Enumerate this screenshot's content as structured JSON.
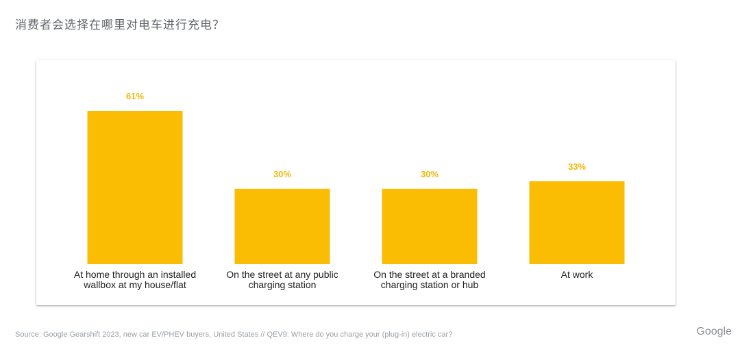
{
  "page": {
    "title": "消费者会选择在哪里对电车进行充电？",
    "source": "Source: Google Gearshift 2023, new car EV/PHEV buyers, United States // QEV9: Where do you charge your (plug-in) electric car?",
    "logo": "Google"
  },
  "colors": {
    "bar": "#FBBC04",
    "value_label": "#F2B705",
    "text": "#202124"
  },
  "chart_data": {
    "type": "bar",
    "title": "",
    "xlabel": "",
    "ylabel": "",
    "ylim": [
      0,
      70
    ],
    "grid": false,
    "legend": "none",
    "categories": [
      [
        "At home through an installed",
        "wallbox at my house/flat"
      ],
      [
        "On the street at any public",
        "charging station"
      ],
      [
        "On the street at a branded",
        "charging station or hub"
      ],
      [
        "At work"
      ]
    ],
    "values": [
      61,
      30,
      30,
      33
    ],
    "value_labels": [
      "61%",
      "30%",
      "30%",
      "33%"
    ]
  }
}
